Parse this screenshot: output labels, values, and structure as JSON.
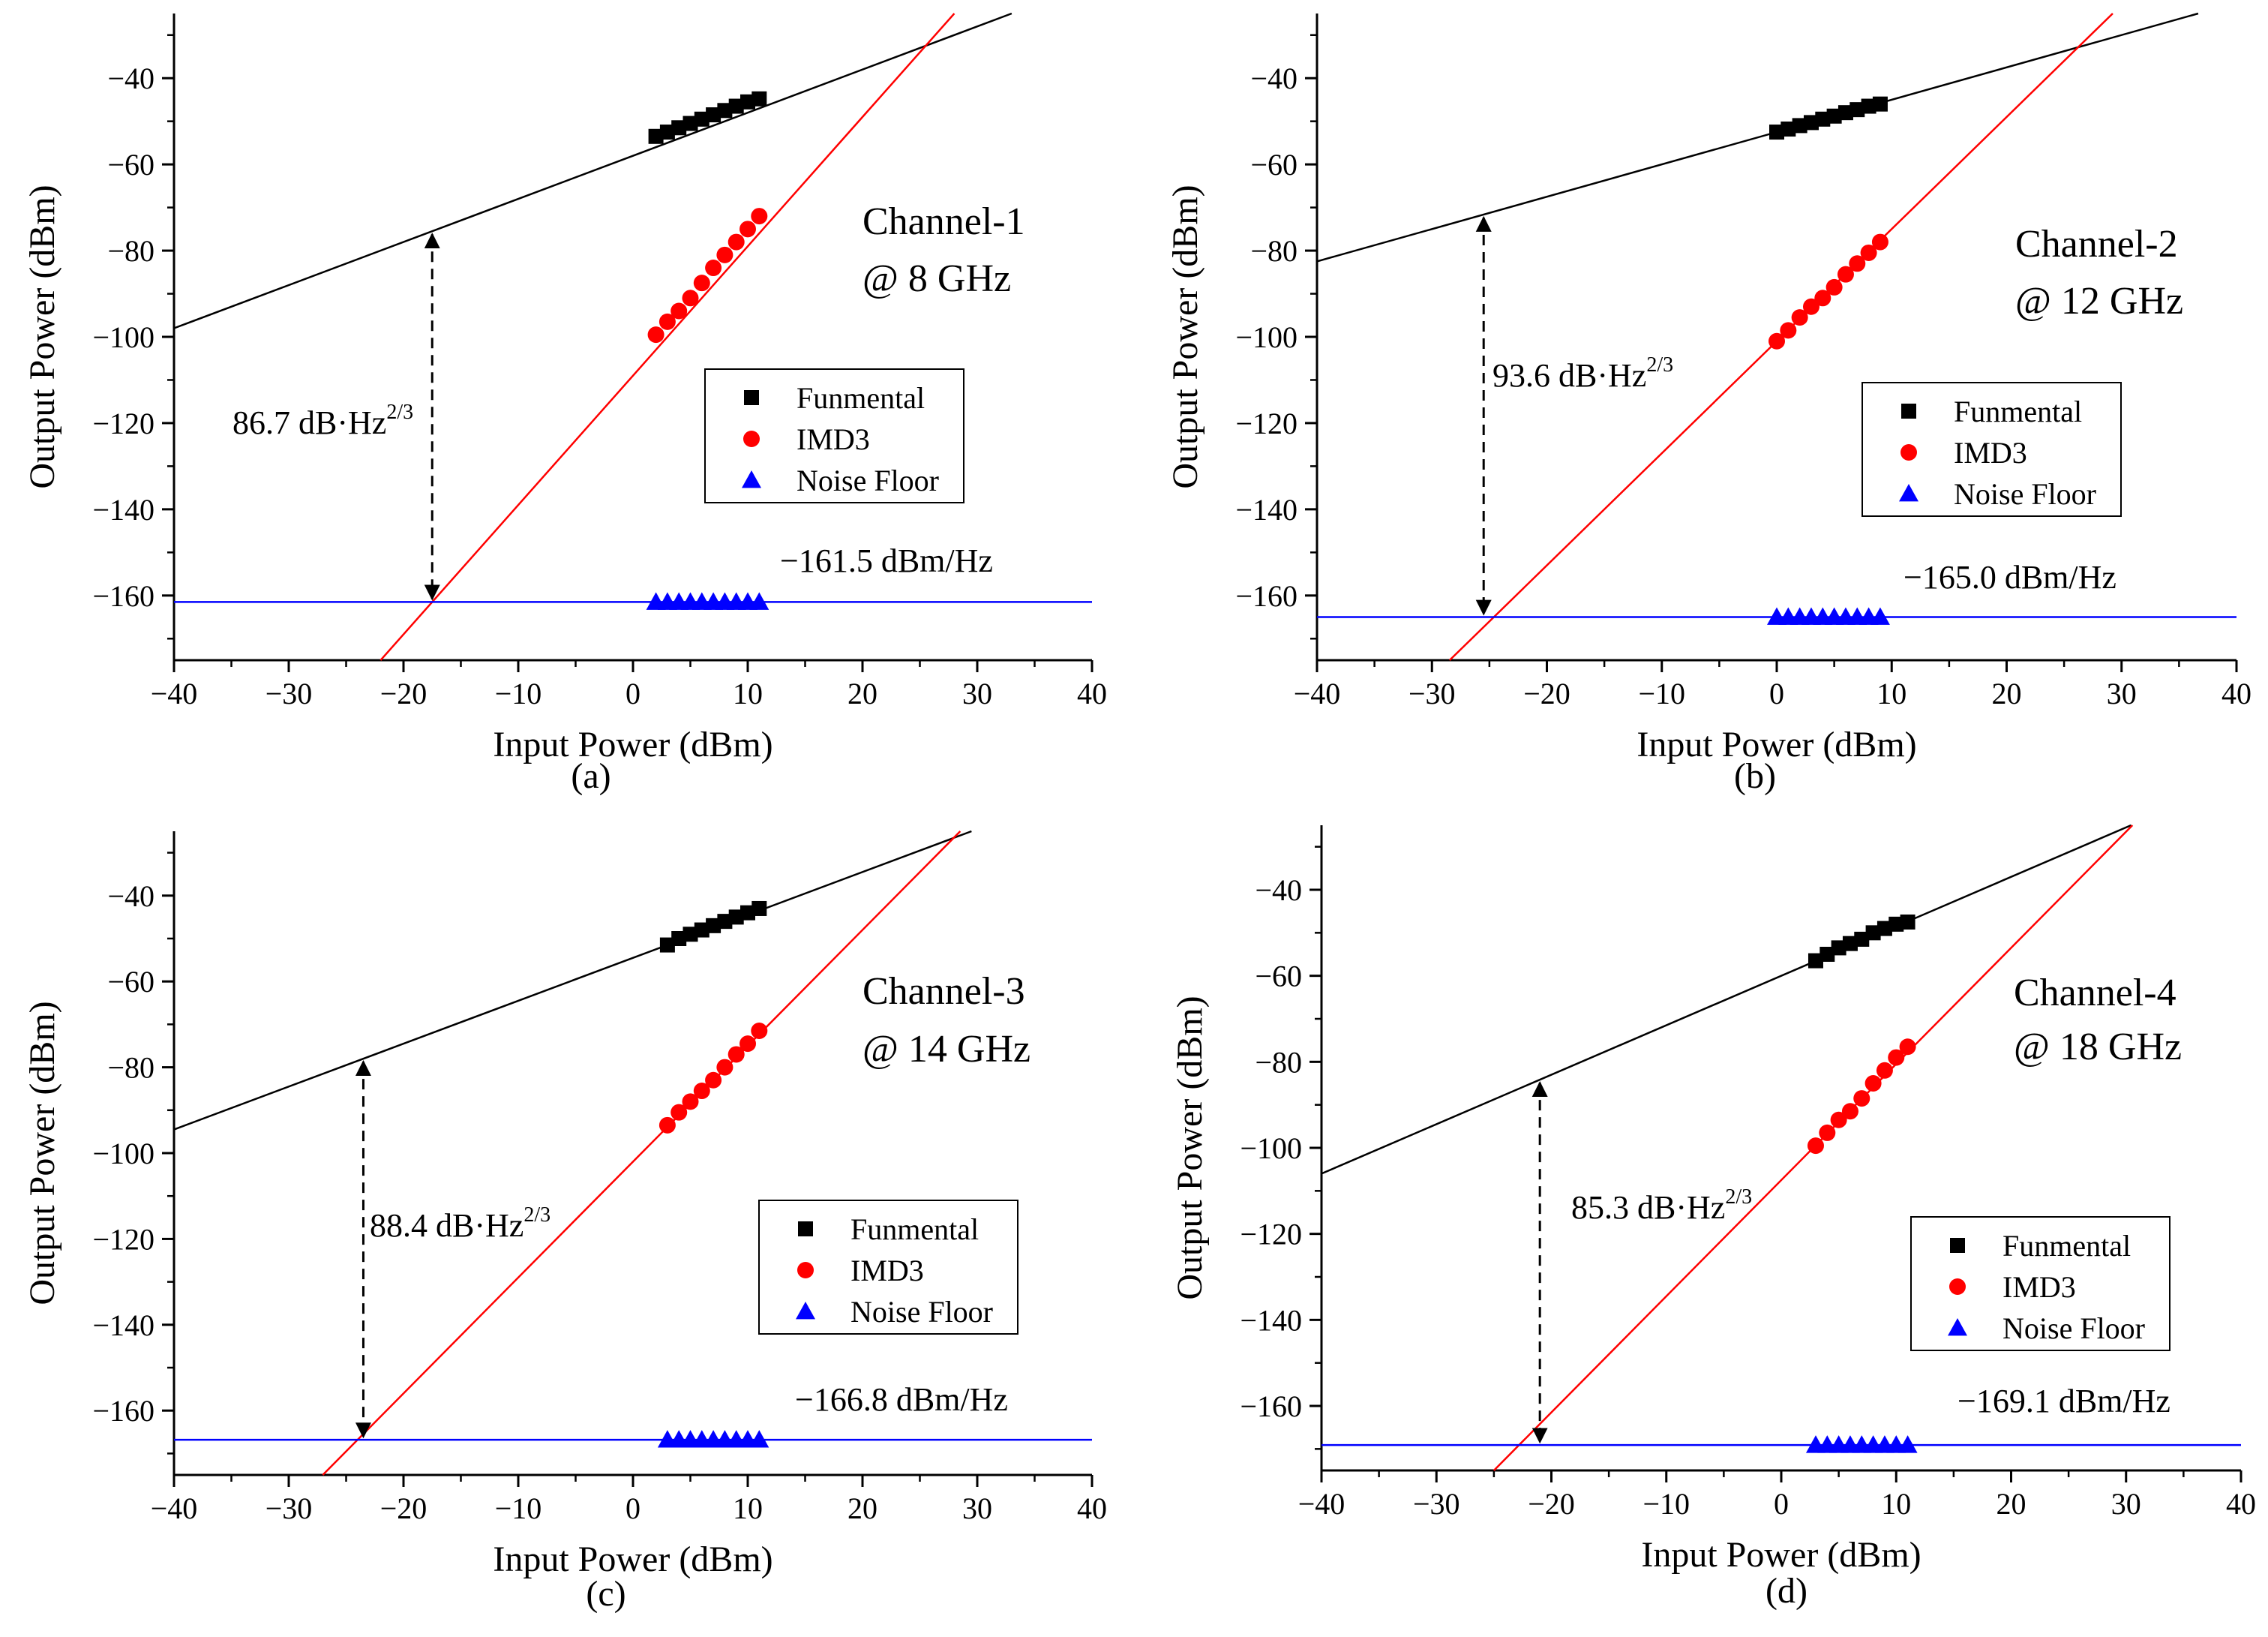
{
  "chart_data": [
    {
      "type": "line",
      "panel_label": "(a)",
      "xlabel": "Input Power (dBm)",
      "ylabel": "Output Power (dBm)",
      "xlim": [
        -40,
        40
      ],
      "ylim": [
        -175,
        -25
      ],
      "xticks": [
        -40,
        -30,
        -20,
        -10,
        0,
        10,
        20,
        30,
        40
      ],
      "yticks": [
        -40,
        -60,
        -80,
        -100,
        -120,
        -140,
        -160
      ],
      "channel_title": [
        "Channel-1",
        "@ 8 GHz"
      ],
      "legend": [
        "Funmental",
        "IMD3",
        "Noise Floor"
      ],
      "noise_label": "-161.5 dBm/Hz",
      "sfdr_label": "86.7 dB·Hz",
      "sfdr_sup": "2/3",
      "fundamental_line": {
        "slope": 1,
        "intercept": -58
      },
      "imd3_line": {
        "slope": 3,
        "intercept": -109
      },
      "noise_floor": -161.5,
      "arrow_x": -17.5,
      "series": [
        {
          "name": "Funmental",
          "marker": "square",
          "color": "#000000",
          "x": [
            2,
            3,
            4,
            5,
            6,
            7,
            8,
            9,
            10,
            11
          ],
          "y": [
            -53.5,
            -52.5,
            -51.5,
            -50.5,
            -49.5,
            -48.5,
            -47.5,
            -46.5,
            -45.5,
            -44.8
          ]
        },
        {
          "name": "IMD3",
          "marker": "circle",
          "color": "#ff0000",
          "x": [
            2,
            3,
            4,
            5,
            6,
            7,
            8,
            9,
            10,
            11
          ],
          "y": [
            -99.5,
            -96.5,
            -94,
            -91,
            -87.5,
            -84,
            -81,
            -78,
            -75,
            -72
          ]
        },
        {
          "name": "Noise Floor",
          "marker": "triangle",
          "color": "#0000ff",
          "x": [
            2,
            3,
            4,
            5,
            6,
            7,
            8,
            9,
            10,
            11
          ],
          "y": [
            -161.5,
            -161.5,
            -161.5,
            -161.5,
            -161.5,
            -161.5,
            -161.5,
            -161.5,
            -161.5,
            -161.5
          ]
        }
      ]
    },
    {
      "type": "line",
      "panel_label": "(b)",
      "xlabel": "Input Power (dBm)",
      "ylabel": "Output Power (dBm)",
      "xlim": [
        -40,
        40
      ],
      "ylim": [
        -175,
        -25
      ],
      "xticks": [
        -40,
        -30,
        -20,
        -10,
        0,
        10,
        20,
        30,
        40
      ],
      "yticks": [
        -40,
        -60,
        -80,
        -100,
        -120,
        -140,
        -160
      ],
      "channel_title": [
        "Channel-2",
        "@ 12 GHz"
      ],
      "legend": [
        "Funmental",
        "IMD3",
        "Noise Floor"
      ],
      "noise_label": "-165.0 dBm/Hz",
      "sfdr_label": "93.6 dB·Hz",
      "sfdr_sup": "2/3",
      "fundamental_line": {
        "slope": 0.75,
        "intercept": -52.5
      },
      "imd3_line": {
        "slope": 2.6,
        "intercept": -101
      },
      "noise_floor": -165,
      "arrow_x": -25.5,
      "series": [
        {
          "name": "Funmental",
          "marker": "square",
          "color": "#000000",
          "x": [
            0,
            1,
            2,
            3,
            4,
            5,
            6,
            7,
            8,
            9
          ],
          "y": [
            -52.5,
            -51.8,
            -51,
            -50.3,
            -49.5,
            -48.8,
            -48,
            -47.3,
            -46.5,
            -46
          ]
        },
        {
          "name": "IMD3",
          "marker": "circle",
          "color": "#ff0000",
          "x": [
            0,
            1,
            2,
            3,
            4,
            5,
            6,
            7,
            8,
            9
          ],
          "y": [
            -101,
            -98.5,
            -95.5,
            -93,
            -91,
            -88.5,
            -85.5,
            -83,
            -80.5,
            -78
          ]
        },
        {
          "name": "Noise Floor",
          "marker": "triangle",
          "color": "#0000ff",
          "x": [
            0,
            1,
            2,
            3,
            4,
            5,
            6,
            7,
            8,
            9
          ],
          "y": [
            -165,
            -165,
            -165,
            -165,
            -165,
            -165,
            -165,
            -165,
            -165,
            -165
          ]
        }
      ]
    },
    {
      "type": "line",
      "panel_label": "(c)",
      "xlabel": "Input Power (dBm)",
      "ylabel": "Output Power (dBm)",
      "xlim": [
        -40,
        40
      ],
      "ylim": [
        -175,
        -25
      ],
      "xticks": [
        -40,
        -30,
        -20,
        -10,
        0,
        10,
        20,
        30,
        40
      ],
      "yticks": [
        -40,
        -60,
        -80,
        -100,
        -120,
        -140,
        -160
      ],
      "channel_title": [
        "Channel-3",
        "@ 14 GHz"
      ],
      "legend": [
        "Funmental",
        "IMD3",
        "Noise Floor"
      ],
      "noise_label": "-166.8 dBm/Hz",
      "sfdr_label": "88.4 dB·Hz",
      "sfdr_sup": "2/3",
      "fundamental_line": {
        "slope": 1,
        "intercept": -54.5
      },
      "imd3_line": {
        "slope": 2.7,
        "intercept": -102
      },
      "noise_floor": -166.8,
      "arrow_x": -23.5,
      "series": [
        {
          "name": "Funmental",
          "marker": "square",
          "color": "#000000",
          "x": [
            3,
            4,
            5,
            6,
            7,
            8,
            9,
            10,
            11
          ],
          "y": [
            -51.5,
            -50,
            -49,
            -48,
            -47,
            -46,
            -45,
            -44,
            -43
          ]
        },
        {
          "name": "IMD3",
          "marker": "circle",
          "color": "#ff0000",
          "x": [
            3,
            4,
            5,
            6,
            7,
            8,
            9,
            10,
            11
          ],
          "y": [
            -93.5,
            -90.5,
            -88,
            -85.5,
            -83,
            -80,
            -77,
            -74.5,
            -71.5
          ]
        },
        {
          "name": "Noise Floor",
          "marker": "triangle",
          "color": "#0000ff",
          "x": [
            3,
            4,
            5,
            6,
            7,
            8,
            9,
            10,
            11
          ],
          "y": [
            -166.8,
            -166.8,
            -166.8,
            -166.8,
            -166.8,
            -166.8,
            -166.8,
            -166.8,
            -166.8
          ]
        }
      ]
    },
    {
      "type": "line",
      "panel_label": "(d)",
      "xlabel": "Input Power (dBm)",
      "ylabel": "Output Power (dBm)",
      "xlim": [
        -40,
        40
      ],
      "ylim": [
        -175,
        -25
      ],
      "xticks": [
        -40,
        -30,
        -20,
        -10,
        0,
        10,
        20,
        30,
        40
      ],
      "yticks": [
        -40,
        -60,
        -80,
        -100,
        -120,
        -140,
        -160
      ],
      "channel_title": [
        "Channel-4",
        "@ 18 GHz"
      ],
      "legend": [
        "Funmental",
        "IMD3",
        "Noise Floor"
      ],
      "noise_label": "-169.1 dBm/Hz",
      "sfdr_label": "85.3 dB·Hz",
      "sfdr_sup": "2/3",
      "fundamental_line": {
        "slope": 1.15,
        "intercept": -60
      },
      "imd3_line": {
        "slope": 2.7,
        "intercept": -107.5
      },
      "noise_floor": -169.1,
      "arrow_x": -21,
      "series": [
        {
          "name": "Funmental",
          "marker": "square",
          "color": "#000000",
          "x": [
            3,
            4,
            5,
            6,
            7,
            8,
            9,
            10,
            11
          ],
          "y": [
            -56.5,
            -55,
            -53.5,
            -52.5,
            -51.5,
            -50,
            -49,
            -48,
            -47.5
          ]
        },
        {
          "name": "IMD3",
          "marker": "circle",
          "color": "#ff0000",
          "x": [
            3,
            4,
            5,
            6,
            7,
            8,
            9,
            10,
            11
          ],
          "y": [
            -99.5,
            -96.5,
            -93.5,
            -91.5,
            -88.5,
            -85,
            -82,
            -79,
            -76.5
          ]
        },
        {
          "name": "Noise Floor",
          "marker": "triangle",
          "color": "#0000ff",
          "x": [
            3,
            4,
            5,
            6,
            7,
            8,
            9,
            10,
            11
          ],
          "y": [
            -169.1,
            -169.1,
            -169.1,
            -169.1,
            -169.1,
            -169.1,
            -169.1,
            -169.1,
            -169.1
          ]
        }
      ]
    }
  ]
}
